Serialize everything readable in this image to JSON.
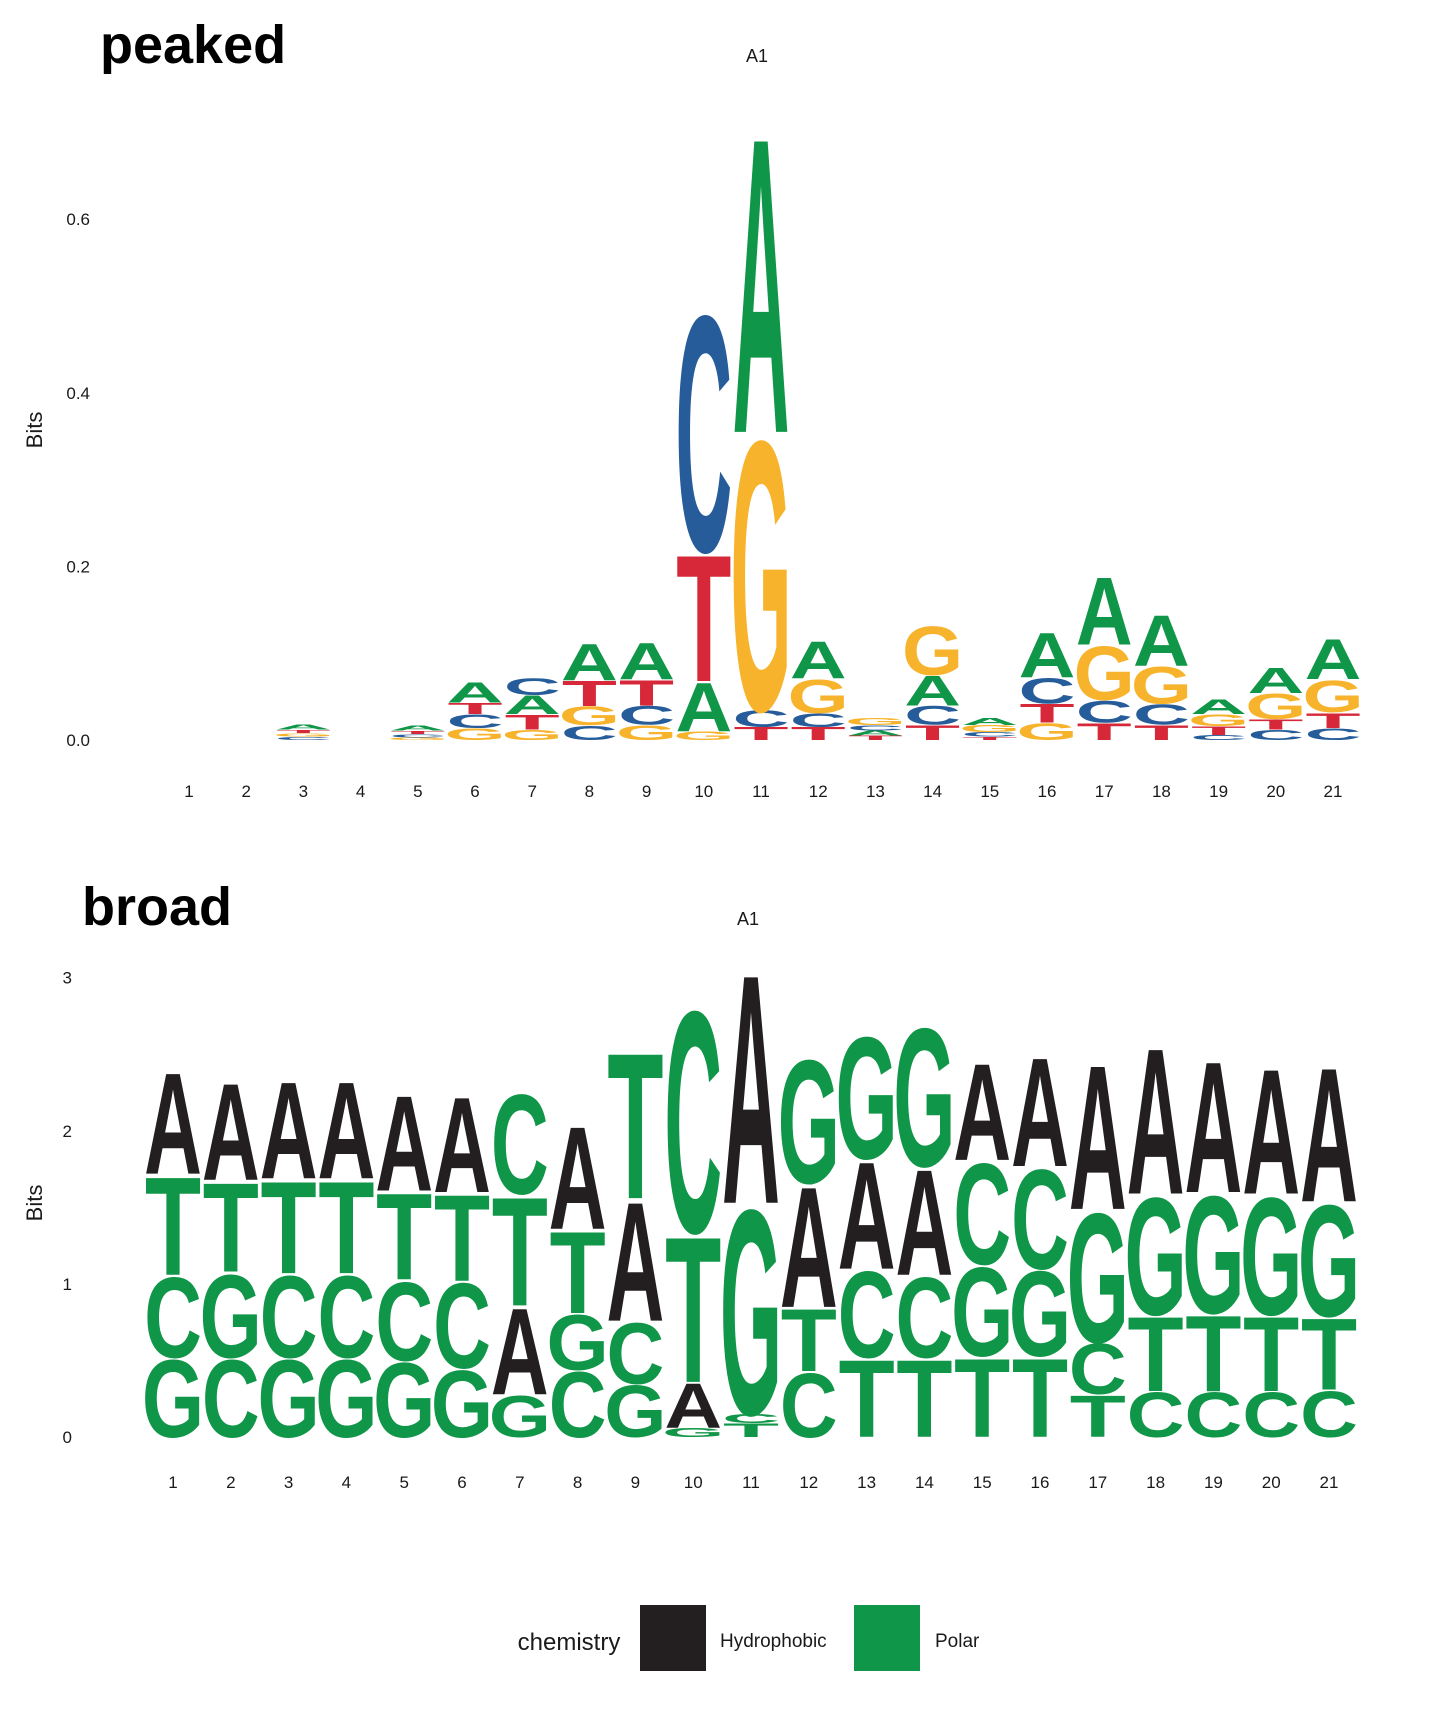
{
  "colors": {
    "A": "#109648",
    "C": "#255C99",
    "G": "#F7B32B",
    "T": "#D62839",
    "hydrophobic": "#231F20",
    "polar": "#109648"
  },
  "legend": {
    "title": "chemistry",
    "items": [
      {
        "label": "Hydrophobic",
        "color": "#231F20"
      },
      {
        "label": "Polar",
        "color": "#109648"
      }
    ]
  },
  "chart_data": [
    {
      "type": "sequence-logo",
      "panel_label": "peaked",
      "title": "A1",
      "ylabel": "Bits",
      "ylim": [
        0,
        0.72
      ],
      "yticks": [
        "0.0",
        "0.2",
        "0.4",
        "0.6"
      ],
      "ytick_values": [
        0,
        0.2,
        0.4,
        0.6
      ],
      "color_scheme": "nucleotide",
      "positions": [
        "1",
        "2",
        "3",
        "4",
        "5",
        "6",
        "7",
        "8",
        "9",
        "10",
        "11",
        "12",
        "13",
        "14",
        "15",
        "16",
        "17",
        "18",
        "19",
        "20",
        "21"
      ],
      "stacks": [
        [],
        [],
        [
          [
            "C",
            0.004
          ],
          [
            "G",
            0.004
          ],
          [
            "T",
            0.004
          ],
          [
            "A",
            0.006
          ]
        ],
        [],
        [
          [
            "G",
            0.003
          ],
          [
            "C",
            0.004
          ],
          [
            "T",
            0.004
          ],
          [
            "A",
            0.006
          ]
        ],
        [
          [
            "G",
            0.014
          ],
          [
            "C",
            0.016
          ],
          [
            "T",
            0.013
          ],
          [
            "A",
            0.024
          ]
        ],
        [
          [
            "G",
            0.012
          ],
          [
            "T",
            0.018
          ],
          [
            "A",
            0.022
          ],
          [
            "C",
            0.02
          ]
        ],
        [
          [
            "C",
            0.017
          ],
          [
            "G",
            0.022
          ],
          [
            "T",
            0.03
          ],
          [
            "A",
            0.043
          ]
        ],
        [
          [
            "G",
            0.018
          ],
          [
            "C",
            0.022
          ],
          [
            "T",
            0.03
          ],
          [
            "A",
            0.043
          ]
        ],
        [
          [
            "G",
            0.01
          ],
          [
            "A",
            0.058
          ],
          [
            "T",
            0.15
          ],
          [
            "C",
            0.28
          ]
        ],
        [
          [
            "T",
            0.015
          ],
          [
            "C",
            0.02
          ],
          [
            "G",
            0.32
          ],
          [
            "A",
            0.35
          ]
        ],
        [
          [
            "T",
            0.015
          ],
          [
            "C",
            0.016
          ],
          [
            "G",
            0.04
          ],
          [
            "A",
            0.044
          ]
        ],
        [
          [
            "T",
            0.005
          ],
          [
            "A",
            0.006
          ],
          [
            "C",
            0.006
          ],
          [
            "G",
            0.008
          ]
        ],
        [
          [
            "T",
            0.018
          ],
          [
            "C",
            0.022
          ],
          [
            "A",
            0.035
          ],
          [
            "G",
            0.058
          ]
        ],
        [
          [
            "T",
            0.004
          ],
          [
            "C",
            0.005
          ],
          [
            "G",
            0.008
          ],
          [
            "A",
            0.008
          ]
        ],
        [
          [
            "G",
            0.02
          ],
          [
            "T",
            0.022
          ],
          [
            "C",
            0.03
          ],
          [
            "A",
            0.053
          ]
        ],
        [
          [
            "T",
            0.02
          ],
          [
            "C",
            0.026
          ],
          [
            "G",
            0.064
          ],
          [
            "A",
            0.08
          ]
        ],
        [
          [
            "T",
            0.018
          ],
          [
            "C",
            0.024
          ],
          [
            "G",
            0.044
          ],
          [
            "A",
            0.06
          ]
        ],
        [
          [
            "C",
            0.006
          ],
          [
            "T",
            0.01
          ],
          [
            "G",
            0.014
          ],
          [
            "A",
            0.018
          ]
        ],
        [
          [
            "C",
            0.012
          ],
          [
            "T",
            0.012
          ],
          [
            "G",
            0.03
          ],
          [
            "A",
            0.03
          ]
        ],
        [
          [
            "C",
            0.014
          ],
          [
            "T",
            0.018
          ],
          [
            "G",
            0.038
          ],
          [
            "A",
            0.048
          ]
        ]
      ]
    },
    {
      "type": "sequence-logo",
      "panel_label": "broad",
      "title": "A1",
      "ylabel": "Bits",
      "ylim": [
        0,
        3.05
      ],
      "yticks": [
        "0",
        "1",
        "2",
        "3"
      ],
      "ytick_values": [
        0,
        1,
        2,
        3
      ],
      "color_scheme": "chemistry",
      "chemistry": {
        "A": "hydrophobic",
        "C": "polar",
        "G": "polar",
        "T": "polar"
      },
      "positions": [
        "1",
        "2",
        "3",
        "4",
        "5",
        "6",
        "7",
        "8",
        "9",
        "10",
        "11",
        "12",
        "13",
        "14",
        "15",
        "16",
        "17",
        "18",
        "19",
        "20",
        "21"
      ],
      "stacks": [
        [
          [
            "G",
            0.52
          ],
          [
            "C",
            0.54
          ],
          [
            "T",
            0.66
          ],
          [
            "A",
            0.68
          ]
        ],
        [
          [
            "C",
            0.52
          ],
          [
            "G",
            0.56
          ],
          [
            "T",
            0.6
          ],
          [
            "A",
            0.65
          ]
        ],
        [
          [
            "G",
            0.52
          ],
          [
            "C",
            0.55
          ],
          [
            "T",
            0.62
          ],
          [
            "A",
            0.65
          ]
        ],
        [
          [
            "G",
            0.52
          ],
          [
            "C",
            0.55
          ],
          [
            "T",
            0.62
          ],
          [
            "A",
            0.65
          ]
        ],
        [
          [
            "G",
            0.5
          ],
          [
            "C",
            0.53
          ],
          [
            "T",
            0.58
          ],
          [
            "A",
            0.64
          ]
        ],
        [
          [
            "G",
            0.45
          ],
          [
            "C",
            0.57
          ],
          [
            "T",
            0.58
          ],
          [
            "A",
            0.64
          ]
        ],
        [
          [
            "G",
            0.28
          ],
          [
            "A",
            0.58
          ],
          [
            "T",
            0.73
          ],
          [
            "C",
            0.67
          ]
        ],
        [
          [
            "C",
            0.44
          ],
          [
            "G",
            0.37
          ],
          [
            "T",
            0.55
          ],
          [
            "A",
            0.69
          ]
        ],
        [
          [
            "G",
            0.35
          ],
          [
            "C",
            0.41
          ],
          [
            "A",
            0.8
          ],
          [
            "T",
            0.98
          ]
        ],
        [
          [
            "G",
            0.06
          ],
          [
            "A",
            0.3
          ],
          [
            "T",
            0.98
          ],
          [
            "C",
            1.49
          ]
        ],
        [
          [
            "T",
            0.09
          ],
          [
            "C",
            0.06
          ],
          [
            "G",
            1.38
          ],
          [
            "A",
            1.54
          ]
        ],
        [
          [
            "C",
            0.43
          ],
          [
            "T",
            0.42
          ],
          [
            "A",
            0.81
          ],
          [
            "G",
            0.83
          ]
        ],
        [
          [
            "T",
            0.52
          ],
          [
            "C",
            0.58
          ],
          [
            "A",
            0.72
          ],
          [
            "G",
            0.82
          ]
        ],
        [
          [
            "T",
            0.52
          ],
          [
            "C",
            0.54
          ],
          [
            "A",
            0.71
          ],
          [
            "G",
            0.93
          ]
        ],
        [
          [
            "T",
            0.53
          ],
          [
            "G",
            0.6
          ],
          [
            "C",
            0.68
          ],
          [
            "A",
            0.65
          ]
        ],
        [
          [
            "T",
            0.53
          ],
          [
            "G",
            0.57
          ],
          [
            "C",
            0.67
          ],
          [
            "A",
            0.73
          ]
        ],
        [
          [
            "T",
            0.28
          ],
          [
            "C",
            0.34
          ],
          [
            "G",
            0.87
          ],
          [
            "A",
            0.97
          ]
        ],
        [
          [
            "C",
            0.3
          ],
          [
            "T",
            0.5
          ],
          [
            "G",
            0.79
          ],
          [
            "A",
            0.98
          ]
        ],
        [
          [
            "C",
            0.3
          ],
          [
            "T",
            0.51
          ],
          [
            "G",
            0.79
          ],
          [
            "A",
            0.88
          ]
        ],
        [
          [
            "C",
            0.3
          ],
          [
            "T",
            0.5
          ],
          [
            "G",
            0.79
          ],
          [
            "A",
            0.84
          ]
        ],
        [
          [
            "C",
            0.31
          ],
          [
            "T",
            0.48
          ],
          [
            "G",
            0.75
          ],
          [
            "A",
            0.9
          ]
        ]
      ]
    }
  ]
}
